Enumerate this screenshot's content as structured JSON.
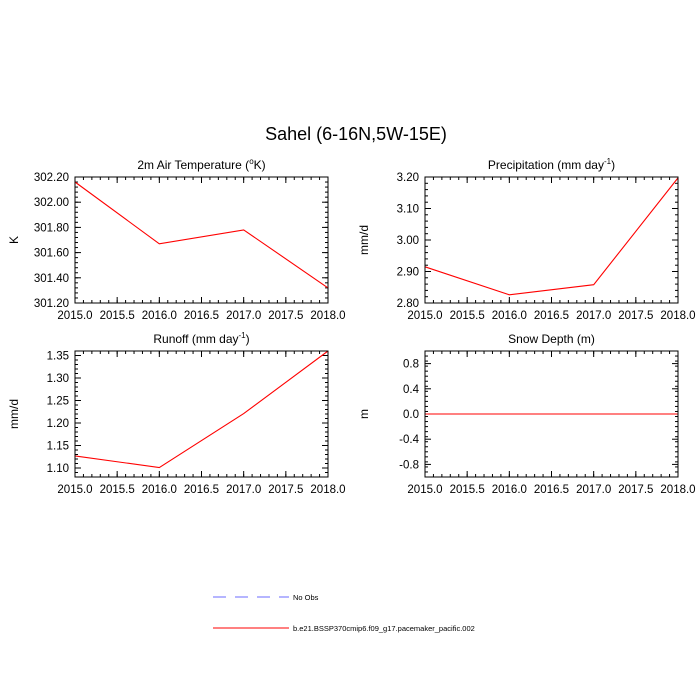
{
  "figure": {
    "title": "Sahel (6-16N,5W-15E)"
  },
  "legend": {
    "entries": [
      {
        "label": "No Obs",
        "color": "#6b6bff",
        "dash": true
      },
      {
        "label": "b.e21.BSSP370cmip6.f09_g17.pacemaker_pacific.002",
        "color": "#ff0000",
        "dash": false
      }
    ]
  },
  "chart_data": [
    {
      "type": "line",
      "title": "2m Air Temperature (",
      "title_sup": "o",
      "title_after": "K)",
      "xlabel": "",
      "ylabel": "K",
      "xlim": [
        2015.0,
        2018.0
      ],
      "ylim": [
        301.2,
        302.2
      ],
      "xticks": [
        2015.0,
        2015.5,
        2016.0,
        2016.5,
        2017.0,
        2017.5,
        2018.0
      ],
      "xtick_labels": [
        "2015.0",
        "2015.5",
        "2016.0",
        "2016.5",
        "2017.0",
        "2017.5",
        "2018.0"
      ],
      "yticks": [
        301.2,
        301.4,
        301.6,
        301.8,
        302.0,
        302.2
      ],
      "ytick_labels": [
        "301.20",
        "301.40",
        "301.60",
        "301.80",
        "302.00",
        "302.20"
      ],
      "series": [
        {
          "name": "b.e21.BSSP370cmip6.f09_g17.pacemaker_pacific.002",
          "color": "#ff0000",
          "x": [
            2015,
            2016,
            2017,
            2018
          ],
          "y": [
            302.16,
            301.67,
            301.78,
            301.32
          ]
        }
      ]
    },
    {
      "type": "line",
      "title": "Precipitation (mm day",
      "title_sup": "-1",
      "title_after": ")",
      "xlabel": "",
      "ylabel": "mm/d",
      "xlim": [
        2015.0,
        2018.0
      ],
      "ylim": [
        2.8,
        3.2
      ],
      "xticks": [
        2015.0,
        2015.5,
        2016.0,
        2016.5,
        2017.0,
        2017.5,
        2018.0
      ],
      "xtick_labels": [
        "2015.0",
        "2015.5",
        "2016.0",
        "2016.5",
        "2017.0",
        "2017.5",
        "2018.0"
      ],
      "yticks": [
        2.8,
        2.9,
        3.0,
        3.1,
        3.2
      ],
      "ytick_labels": [
        "2.80",
        "2.90",
        "3.00",
        "3.10",
        "3.20"
      ],
      "series": [
        {
          "name": "b.e21.BSSP370cmip6.f09_g17.pacemaker_pacific.002",
          "color": "#ff0000",
          "x": [
            2015,
            2016,
            2017,
            2018
          ],
          "y": [
            2.915,
            2.826,
            2.858,
            3.197
          ]
        }
      ]
    },
    {
      "type": "line",
      "title": "Runoff (mm day",
      "title_sup": "-1",
      "title_after": ")",
      "xlabel": "",
      "ylabel": "mm/d",
      "xlim": [
        2015.0,
        2018.0
      ],
      "ylim": [
        1.08,
        1.36
      ],
      "xticks": [
        2015.0,
        2015.5,
        2016.0,
        2016.5,
        2017.0,
        2017.5,
        2018.0
      ],
      "xtick_labels": [
        "2015.0",
        "2015.5",
        "2016.0",
        "2016.5",
        "2017.0",
        "2017.5",
        "2018.0"
      ],
      "yticks": [
        1.1,
        1.15,
        1.2,
        1.25,
        1.3,
        1.35
      ],
      "ytick_labels": [
        "1.10",
        "1.15",
        "1.20",
        "1.25",
        "1.30",
        "1.35"
      ],
      "series": [
        {
          "name": "b.e21.BSSP370cmip6.f09_g17.pacemaker_pacific.002",
          "color": "#ff0000",
          "x": [
            2015,
            2016,
            2017,
            2018
          ],
          "y": [
            1.127,
            1.101,
            1.221,
            1.36
          ]
        }
      ]
    },
    {
      "type": "line",
      "title": "Snow Depth (m)",
      "title_sup": "",
      "title_after": "",
      "xlabel": "",
      "ylabel": "m",
      "xlim": [
        2015.0,
        2018.0
      ],
      "ylim": [
        -1.0,
        1.0
      ],
      "xticks": [
        2015.0,
        2015.5,
        2016.0,
        2016.5,
        2017.0,
        2017.5,
        2018.0
      ],
      "xtick_labels": [
        "2015.0",
        "2015.5",
        "2016.0",
        "2016.5",
        "2017.0",
        "2017.5",
        "2018.0"
      ],
      "yticks": [
        -0.8,
        -0.4,
        0.0,
        0.4,
        0.8
      ],
      "ytick_labels": [
        "-0.8",
        "-0.4",
        "0.0",
        "0.4",
        "0.8"
      ],
      "series": [
        {
          "name": "b.e21.BSSP370cmip6.f09_g17.pacemaker_pacific.002",
          "color": "#ff0000",
          "x": [
            2015,
            2016,
            2017,
            2018
          ],
          "y": [
            0.0,
            0.0,
            0.0,
            0.0
          ]
        }
      ]
    }
  ]
}
